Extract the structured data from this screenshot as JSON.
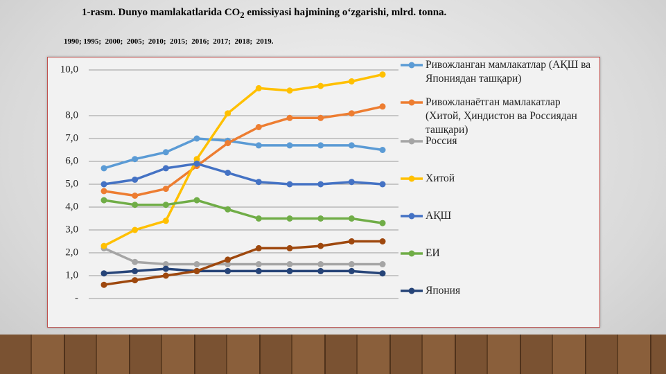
{
  "chart_data": {
    "type": "line",
    "title": [
      "1-rasm. Dunyo mamlakatlarida CO",
      "2",
      " emissiyasi hajmining o‘zgarishi, mlrd. tonna."
    ],
    "subtitle": "1990; 1995;  2000;  2005;  2010;  2015;  2016;  2017;  2018;  2019.",
    "categories": [
      null,
      null,
      null,
      null,
      null,
      null,
      null,
      null,
      null,
      null
    ],
    "ylim": [
      0,
      10
    ],
    "yticks": [
      {
        "value": 0,
        "label": "-"
      },
      {
        "value": 1,
        "label": "1,0"
      },
      {
        "value": 2,
        "label": "2,0"
      },
      {
        "value": 3,
        "label": "3,0"
      },
      {
        "value": 4,
        "label": "4,0"
      },
      {
        "value": 5,
        "label": "5,0"
      },
      {
        "value": 6,
        "label": "6,0"
      },
      {
        "value": 7,
        "label": "7,0"
      },
      {
        "value": 8,
        "label": "8,0"
      },
      {
        "value": 10,
        "label": "10,0"
      }
    ],
    "grid": true,
    "legend": "right",
    "series": [
      {
        "name": "Ривожланган мамлакатлар (АҚШ ва Япониядан ташқари)",
        "color": "#5b9bd5",
        "values": [
          5.7,
          6.1,
          6.4,
          7.0,
          6.9,
          6.7,
          6.7,
          6.7,
          6.7,
          6.5
        ]
      },
      {
        "name": "Ривожланаётган мамлакатлар (Хитой, Ҳиндистон ва Россиядан ташқари)",
        "color": "#ed7d31",
        "values": [
          4.7,
          4.5,
          4.8,
          5.8,
          6.8,
          7.5,
          7.9,
          7.9,
          8.1,
          8.4
        ]
      },
      {
        "name": "Россия",
        "color": "#a5a5a5",
        "values": [
          2.2,
          1.6,
          1.5,
          1.5,
          1.5,
          1.5,
          1.5,
          1.5,
          1.5,
          1.5
        ]
      },
      {
        "name": "Хитой",
        "color": "#ffc000",
        "values": [
          2.3,
          3.0,
          3.4,
          6.1,
          8.1,
          9.2,
          9.1,
          9.3,
          9.5,
          9.8
        ]
      },
      {
        "name": "АҚШ",
        "color": "#4472c4",
        "values": [
          5.0,
          5.2,
          5.7,
          5.9,
          5.5,
          5.1,
          5.0,
          5.0,
          5.1,
          5.0
        ]
      },
      {
        "name": "ЕИ",
        "color": "#70ad47",
        "values": [
          4.3,
          4.1,
          4.1,
          4.3,
          3.9,
          3.5,
          3.5,
          3.5,
          3.5,
          3.3
        ]
      },
      {
        "name": "Япония",
        "color": "#264478",
        "values": [
          1.1,
          1.2,
          1.3,
          1.2,
          1.2,
          1.2,
          1.2,
          1.2,
          1.2,
          1.1
        ]
      },
      {
        "color": "#9e480e",
        "values": [
          0.6,
          0.8,
          1.0,
          1.2,
          1.7,
          2.2,
          2.2,
          2.3,
          2.5,
          2.5
        ]
      }
    ]
  }
}
